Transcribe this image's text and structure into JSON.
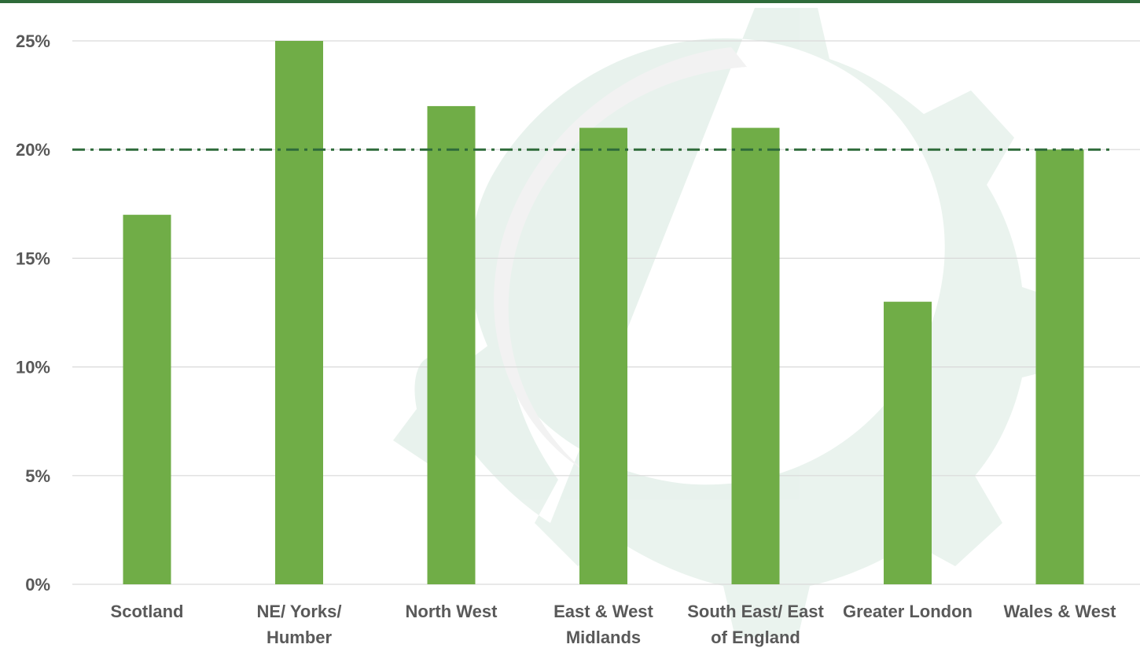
{
  "colors": {
    "bar": "#70ad47",
    "reference_line": "#2e6b3a",
    "grid": "#d9d9d9",
    "axis_text": "#595959",
    "header_bar": "#2e6b3a"
  },
  "chart_data": {
    "type": "bar",
    "title": "",
    "xlabel": "",
    "ylabel": "",
    "ylim": [
      0,
      25
    ],
    "y_ticks": [
      "0%",
      "5%",
      "10%",
      "15%",
      "20%",
      "25%"
    ],
    "y_tick_values": [
      0,
      5,
      10,
      15,
      20,
      25
    ],
    "categories": [
      [
        "Scotland"
      ],
      [
        "NE/ Yorks/",
        "Humber"
      ],
      [
        "North West"
      ],
      [
        "East & West",
        "Midlands"
      ],
      [
        "South East/ East",
        "of England"
      ],
      [
        "Greater London"
      ],
      [
        "Wales & West"
      ]
    ],
    "values": [
      17,
      25,
      22,
      21,
      21,
      13,
      20
    ],
    "reference_line": 20,
    "grid": true,
    "legend": "none"
  }
}
